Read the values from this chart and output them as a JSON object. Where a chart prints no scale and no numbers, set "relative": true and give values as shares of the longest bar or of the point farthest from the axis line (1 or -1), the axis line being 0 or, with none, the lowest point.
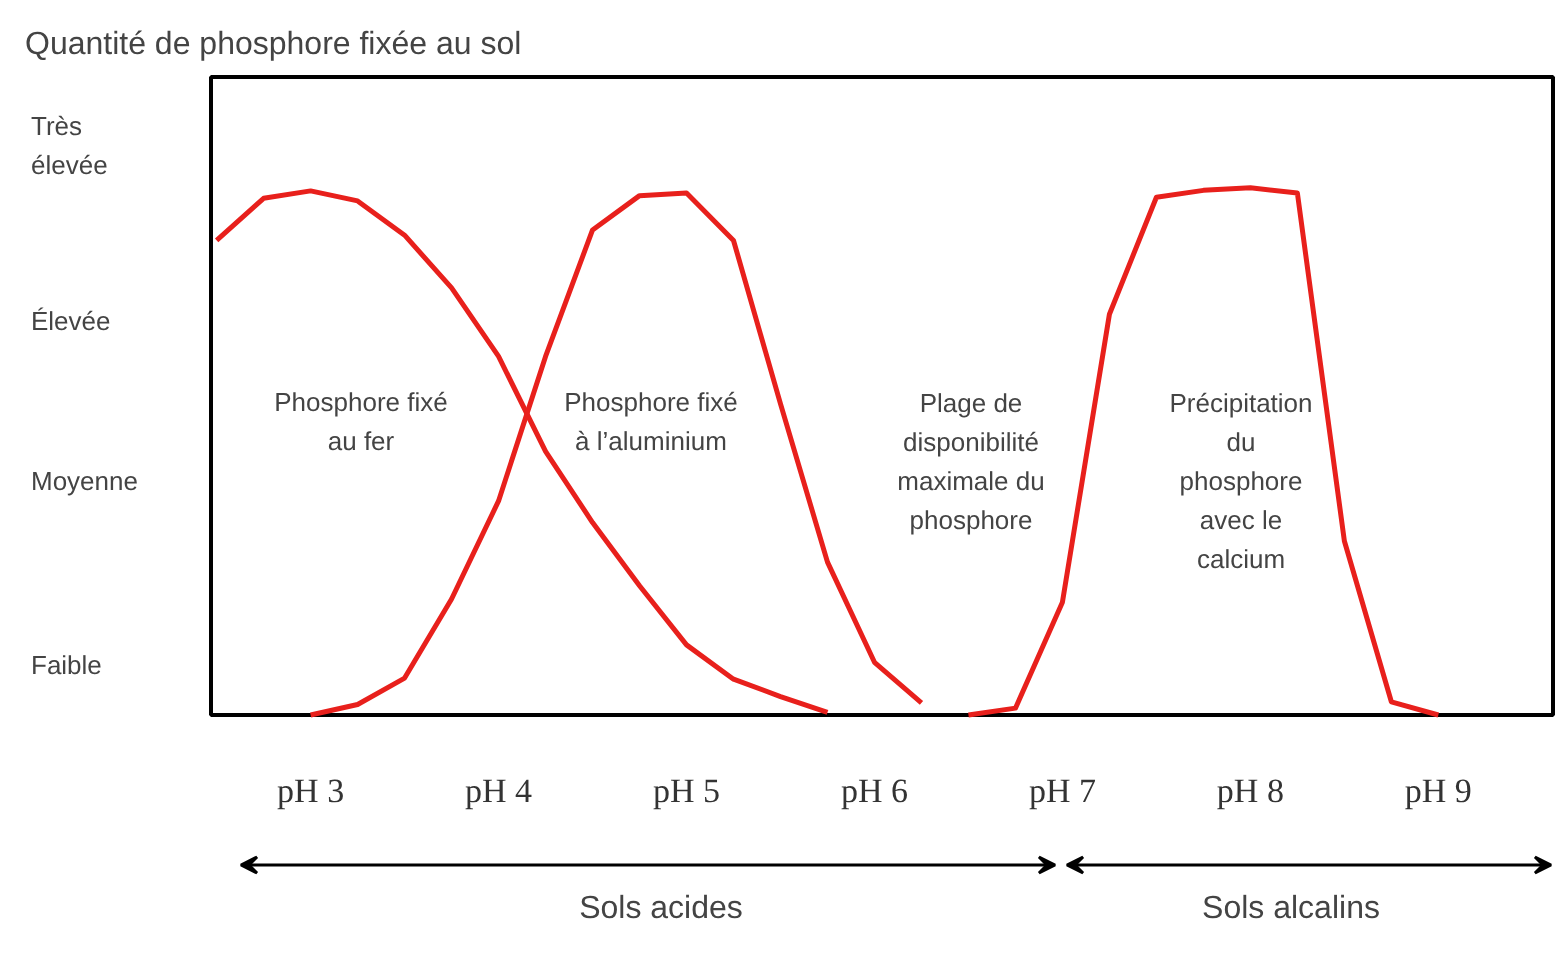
{
  "chart_data": {
    "type": "line",
    "title": "Quantité de phosphore fixée au sol",
    "relative": true,
    "categories": [
      null,
      null,
      "pH 3",
      null,
      null,
      null,
      "pH 4",
      null,
      null,
      null,
      "pH 5",
      null,
      null,
      null,
      "pH 6",
      null,
      null,
      null,
      "pH 7",
      null,
      null,
      null,
      "pH 8",
      null,
      null,
      null,
      "pH 9",
      null,
      null
    ],
    "grid": false,
    "marker": "none",
    "line_style": "solid",
    "series": [
      {
        "color": "#e8201c",
        "values": [
          0.9,
          0.98,
          0.994,
          0.975,
          0.91,
          0.81,
          0.68,
          0.5,
          0.365,
          0.245,
          0.133,
          0.068,
          0.035,
          0.005,
          null,
          null,
          null,
          null,
          null,
          null,
          null,
          null,
          null,
          null,
          null,
          null,
          null,
          null,
          null
        ]
      },
      {
        "color": "#e8201c",
        "values": [
          null,
          null,
          0,
          0.02,
          0.07,
          0.22,
          0.406,
          0.68,
          0.92,
          0.985,
          0.99,
          0.9,
          0.59,
          0.29,
          0.1,
          0.023,
          null,
          null,
          null,
          null,
          null,
          null,
          null,
          null,
          null,
          null,
          null,
          null,
          null
        ]
      },
      {
        "color": "#e8201c",
        "values": [
          null,
          null,
          null,
          null,
          null,
          null,
          null,
          null,
          null,
          null,
          null,
          null,
          null,
          null,
          null,
          null,
          0,
          0.013,
          0.214,
          0.76,
          0.982,
          0.995,
          1.0,
          0.99,
          0.33,
          0.025,
          0,
          null,
          null
        ]
      }
    ],
    "annotations": [
      "Très\nélevée",
      "Élevée",
      "Moyenne",
      "Faible",
      "Phosphore fixé\nau fer",
      "Phosphore fixé\nà l’aluminium",
      "Plage de\ndisponibilité\nmaximale du\nphosphore",
      "Précipitation\ndu\nphosphore\navec le\ncalcium",
      "Sols acides",
      "Sols alcalins"
    ]
  }
}
